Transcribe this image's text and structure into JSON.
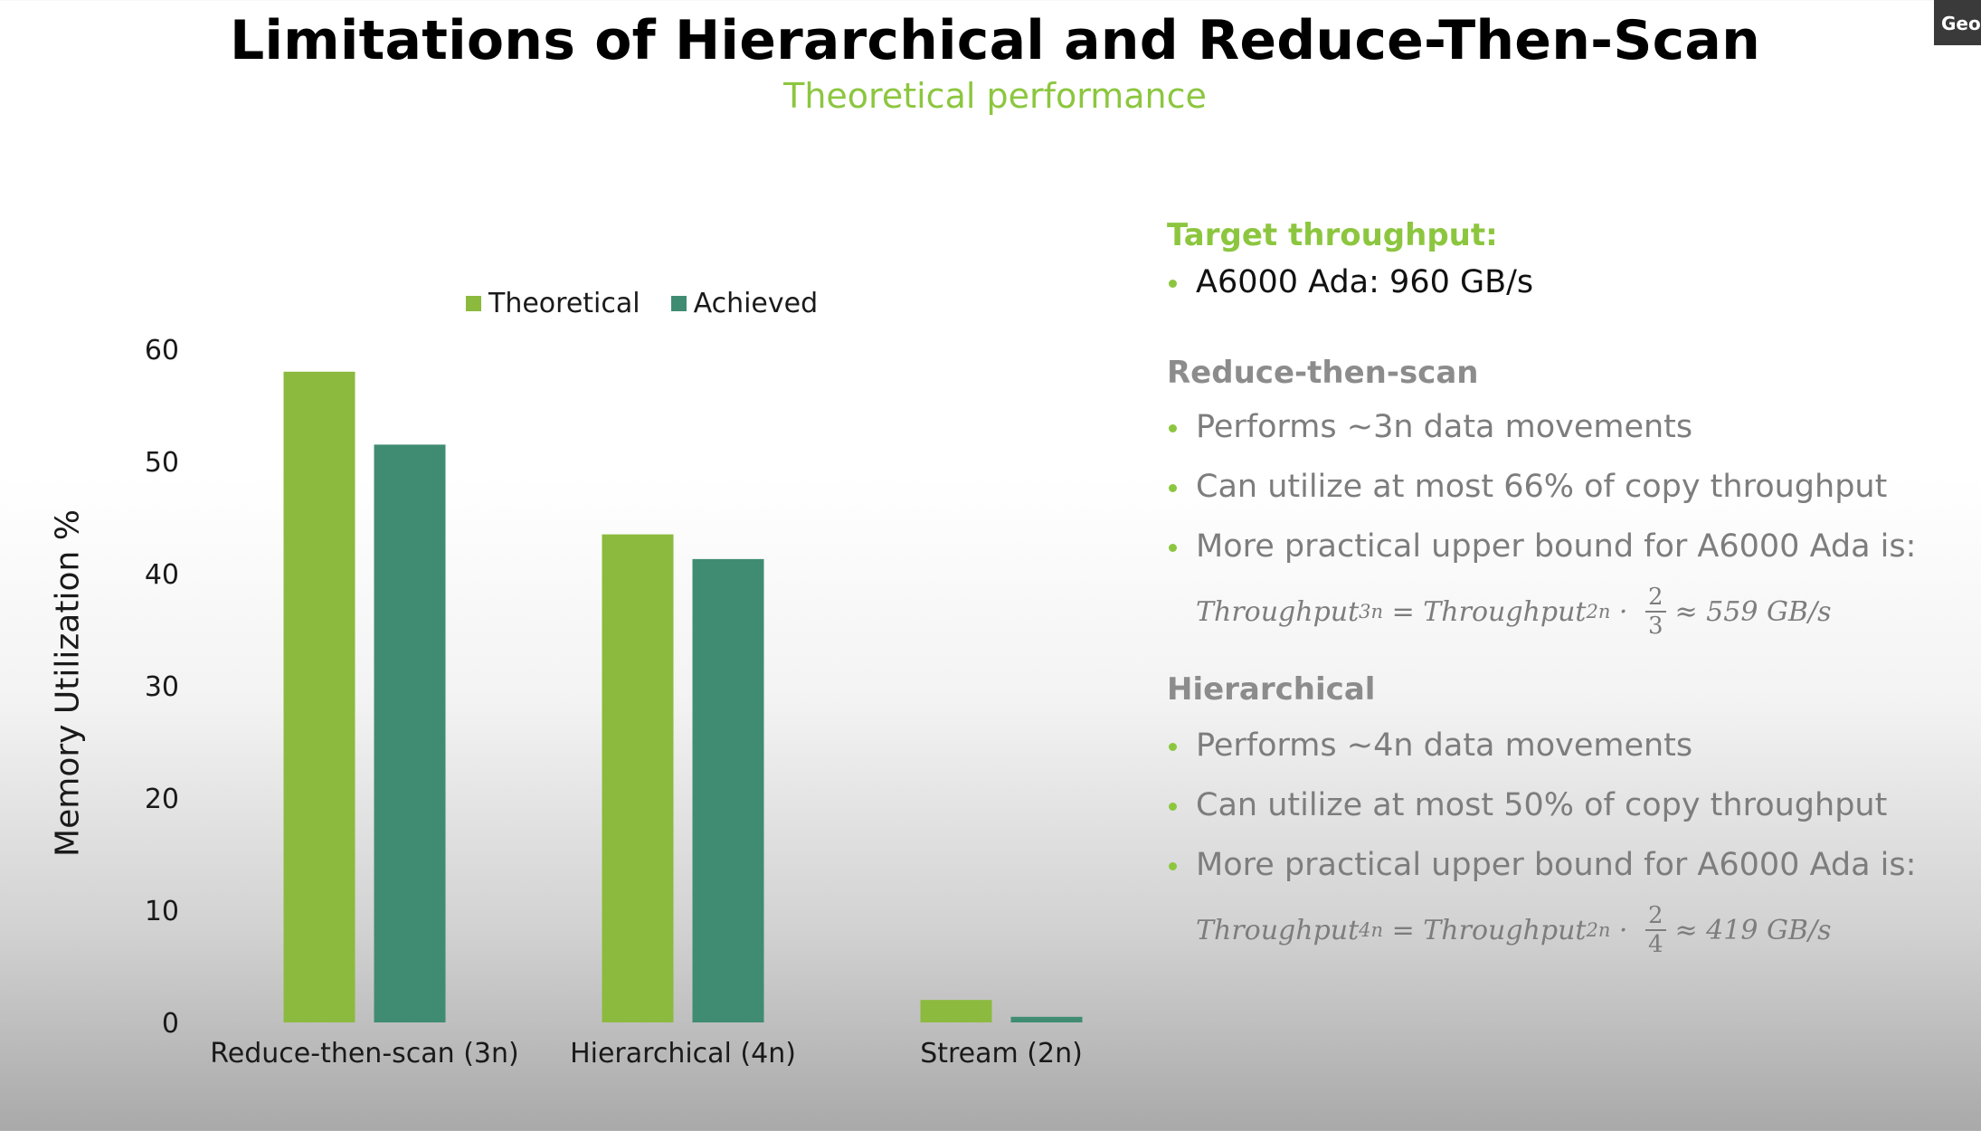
{
  "slide": {
    "title": "Limitations of Hierarchical and Reduce-Then-Scan",
    "subtitle": "Theoretical performance",
    "badge": "Georg"
  },
  "chart_data": {
    "type": "bar",
    "categories": [
      "Reduce-then-scan (3n)",
      "Hierarchical (4n)",
      "Stream (2n)"
    ],
    "series": [
      {
        "name": "Theoretical",
        "color": "#8cba3e",
        "values": [
          58,
          43.5,
          2
        ]
      },
      {
        "name": "Achieved",
        "color": "#3f8c73",
        "values": [
          51.5,
          41.3,
          0.5
        ]
      }
    ],
    "ylabel": "Memory Utilization %",
    "ylim": [
      0,
      60
    ],
    "yticks": [
      "0",
      "10",
      "20",
      "30",
      "40",
      "50",
      "60"
    ],
    "grid": false,
    "legend_position": "top"
  },
  "panel": {
    "target_title": "Target throughput:",
    "target_items": [
      "A6000 Ada: 960 GB/s"
    ],
    "rts_title": "Reduce-then-scan",
    "rts_items": [
      "Performs ~3n data movements",
      "Can utilize at most 66% of copy throughput",
      "More practical upper bound for A6000 Ada is:"
    ],
    "rts_formula": {
      "lhs": "Throughput",
      "lhs_sub": "3n",
      "eq": " = ",
      "rhs": "Throughput",
      "rhs_sub": "2n",
      "dot": " · ",
      "num": "2",
      "den": "3",
      "result": "≈ 559 GB/s"
    },
    "hier_title": "Hierarchical",
    "hier_items": [
      "Performs ~4n data movements",
      "Can utilize at most 50% of copy throughput",
      "More practical upper bound for A6000 Ada is:"
    ],
    "hier_formula": {
      "lhs": "Throughput",
      "lhs_sub": "4n",
      "eq": " = ",
      "rhs": "Throughput",
      "rhs_sub": "2n",
      "dot": " · ",
      "num": "2",
      "den": "4",
      "result": "≈ 419 GB/s"
    }
  }
}
